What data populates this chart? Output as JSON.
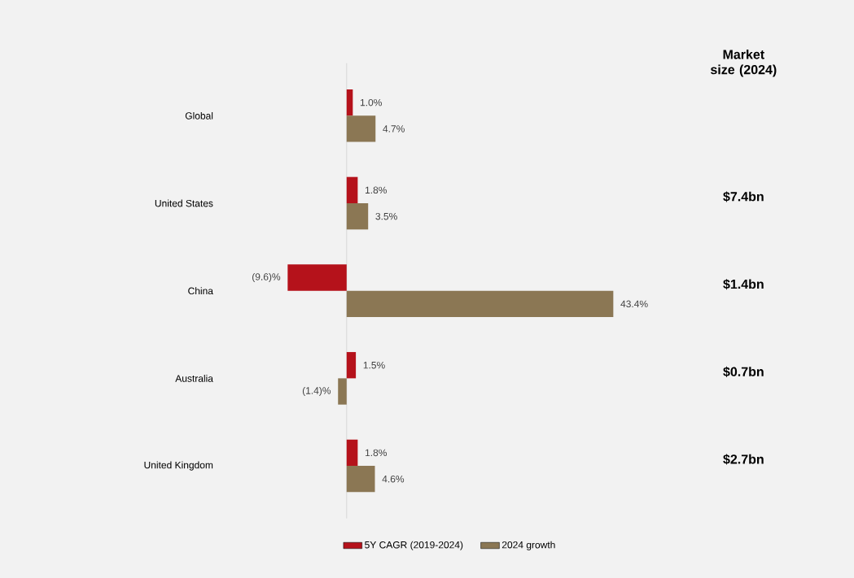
{
  "chart_data": {
    "type": "bar",
    "orientation": "horizontal",
    "categories": [
      "Global",
      "United States",
      "China",
      "Australia",
      "United Kingdom"
    ],
    "series": [
      {
        "name": "5Y CAGR (2019-2024)",
        "color": "#b5121b",
        "values": [
          1.0,
          1.8,
          -9.6,
          1.5,
          1.8
        ],
        "value_labels": [
          "1.0%",
          "1.8%",
          "(9.6)%",
          "1.5%",
          "1.8%"
        ]
      },
      {
        "name": "2024 growth",
        "color": "#8b7754",
        "values": [
          4.7,
          3.5,
          43.4,
          -1.4,
          4.6
        ],
        "value_labels": [
          "4.7%",
          "3.5%",
          "43.4%",
          "(1.4)%",
          "4.6%"
        ]
      }
    ],
    "tick_labels": "y",
    "legend": "bottom",
    "ref_lines": [
      {
        "axis": "x",
        "value": 0,
        "color": "#d9d9d9"
      }
    ],
    "annotations": [
      "Market size (2024)",
      "$7.4bn",
      "$1.4bn",
      "$0.7bn",
      "$2.7bn"
    ]
  }
}
